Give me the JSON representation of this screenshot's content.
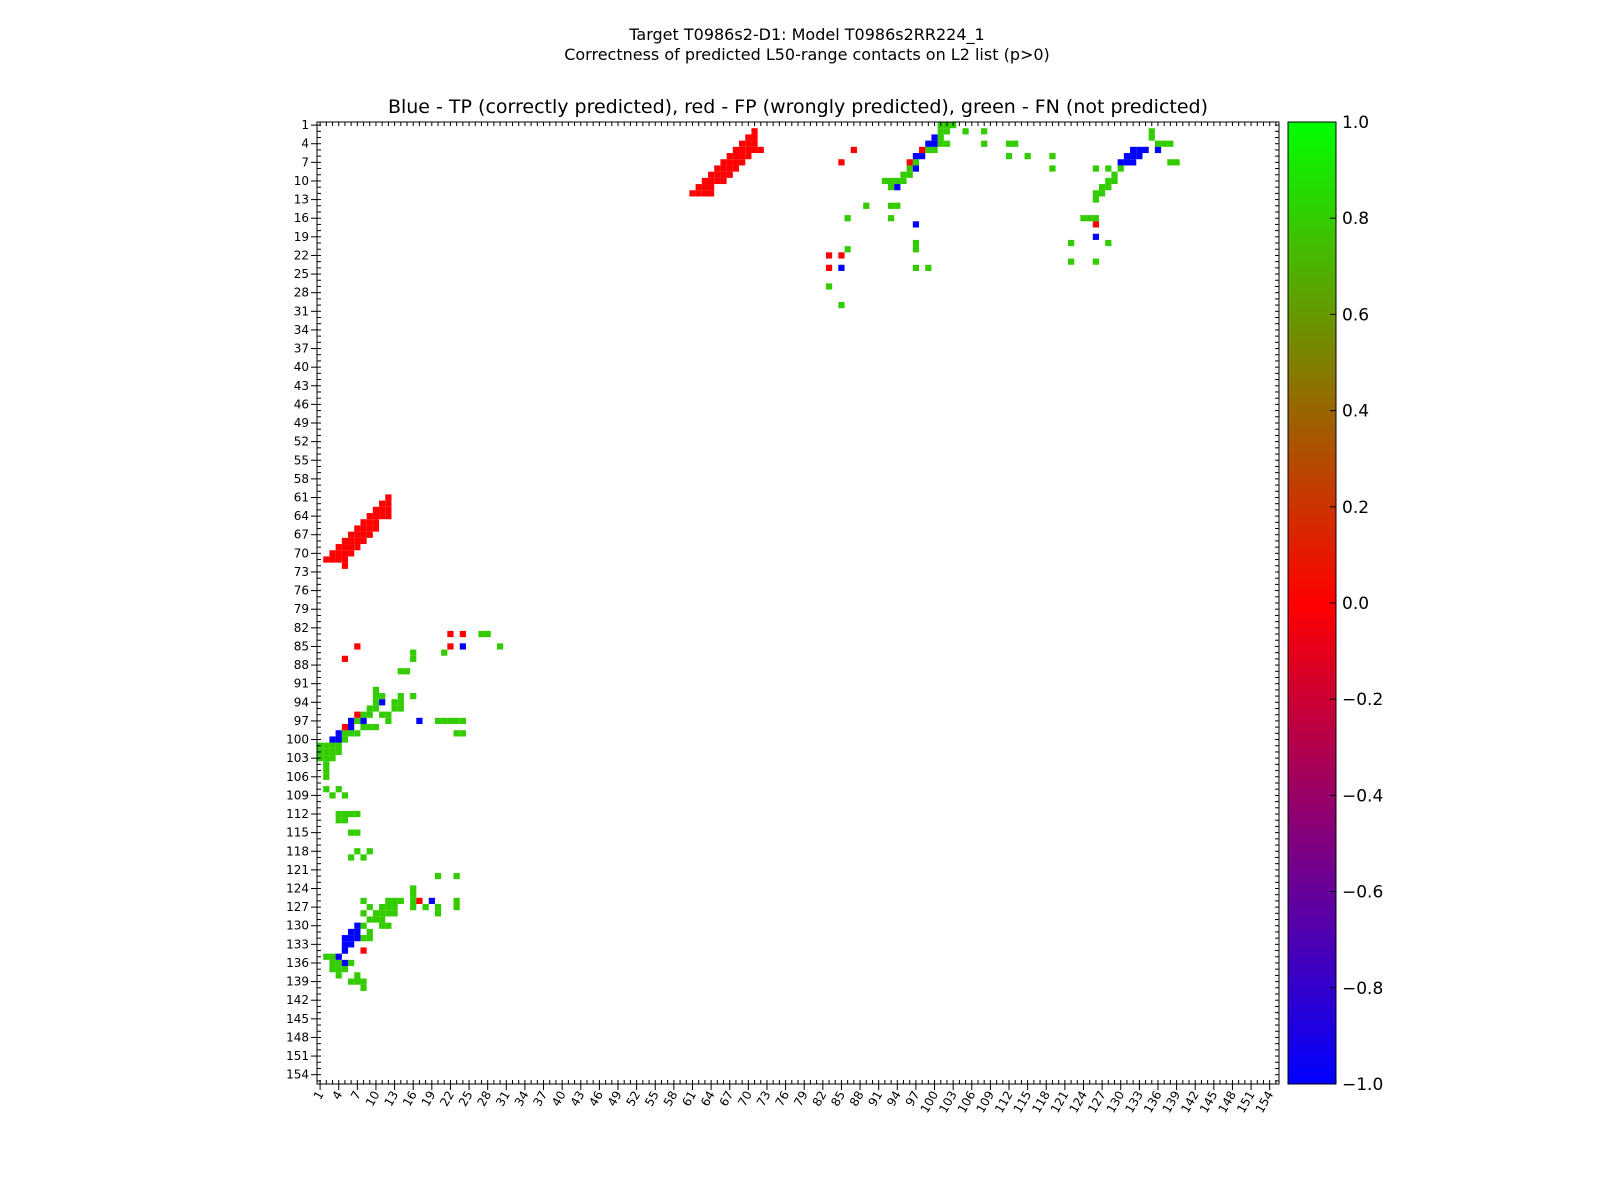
{
  "chart_data": {
    "type": "heatmap",
    "title_line1": "Target T0986s2-D1: Model T0986s2RR224_1",
    "title_line2": "Correctness of predicted L50-range contacts on L2 list (p>0)",
    "subtitle": "Blue - TP (correctly predicted), red - FP (wrongly predicted), green - FN (not predicted)",
    "x_range": [
      1,
      155
    ],
    "y_range": [
      1,
      155
    ],
    "x_ticks": [
      "1",
      "4",
      "7",
      "10",
      "13",
      "16",
      "19",
      "22",
      "25",
      "28",
      "31",
      "34",
      "37",
      "40",
      "43",
      "46",
      "49",
      "52",
      "55",
      "58",
      "61",
      "64",
      "67",
      "70",
      "73",
      "76",
      "79",
      "82",
      "85",
      "88",
      "91",
      "94",
      "97",
      "100",
      "103",
      "106",
      "109",
      "112",
      "115",
      "118",
      "121",
      "124",
      "127",
      "130",
      "133",
      "136",
      "139",
      "142",
      "145",
      "148",
      "151",
      "154"
    ],
    "y_ticks": [
      "1",
      "4",
      "7",
      "10",
      "13",
      "16",
      "19",
      "22",
      "25",
      "28",
      "31",
      "34",
      "37",
      "40",
      "43",
      "46",
      "49",
      "52",
      "55",
      "58",
      "61",
      "64",
      "67",
      "70",
      "73",
      "76",
      "79",
      "82",
      "85",
      "88",
      "91",
      "94",
      "97",
      "100",
      "103",
      "106",
      "109",
      "112",
      "115",
      "118",
      "121",
      "124",
      "127",
      "130",
      "133",
      "136",
      "139",
      "142",
      "145",
      "148",
      "151",
      "154"
    ],
    "colorbar": {
      "range": [
        -1.0,
        1.0
      ],
      "tick_labels": [
        "1.0",
        "0.8",
        "0.6",
        "0.4",
        "0.2",
        "0.0",
        "−0.2",
        "−0.4",
        "−0.6",
        "−0.8",
        "−1.0"
      ],
      "tick_values": [
        1.0,
        0.8,
        0.6,
        0.4,
        0.2,
        0.0,
        -0.2,
        -0.4,
        -0.6,
        -0.8,
        -1.0
      ],
      "colors": [
        "#0000ff",
        "#ff0000",
        "#00ff00"
      ]
    },
    "legend_colors": {
      "tp": "#0000ff",
      "fp": "#ff0000",
      "fn": "#33cc00"
    },
    "fp_cells": [
      [
        61,
        12
      ],
      [
        62,
        12
      ],
      [
        63,
        12
      ],
      [
        64,
        12
      ],
      [
        62,
        11
      ],
      [
        63,
        11
      ],
      [
        64,
        11
      ],
      [
        63,
        10
      ],
      [
        64,
        10
      ],
      [
        65,
        10
      ],
      [
        66,
        10
      ],
      [
        64,
        9
      ],
      [
        65,
        9
      ],
      [
        66,
        9
      ],
      [
        67,
        9
      ],
      [
        65,
        8
      ],
      [
        66,
        8
      ],
      [
        67,
        8
      ],
      [
        68,
        8
      ],
      [
        66,
        7
      ],
      [
        67,
        7
      ],
      [
        68,
        7
      ],
      [
        69,
        7
      ],
      [
        67,
        6
      ],
      [
        68,
        6
      ],
      [
        69,
        6
      ],
      [
        70,
        6
      ],
      [
        68,
        5
      ],
      [
        69,
        5
      ],
      [
        70,
        5
      ],
      [
        71,
        5
      ],
      [
        69,
        4
      ],
      [
        70,
        4
      ],
      [
        71,
        4
      ],
      [
        70,
        3
      ],
      [
        71,
        3
      ],
      [
        71,
        2
      ],
      [
        72,
        5
      ],
      [
        12,
        61
      ],
      [
        12,
        62
      ],
      [
        12,
        63
      ],
      [
        12,
        64
      ],
      [
        11,
        62
      ],
      [
        11,
        63
      ],
      [
        11,
        64
      ],
      [
        10,
        63
      ],
      [
        10,
        64
      ],
      [
        10,
        65
      ],
      [
        10,
        66
      ],
      [
        9,
        64
      ],
      [
        9,
        65
      ],
      [
        9,
        66
      ],
      [
        9,
        67
      ],
      [
        8,
        65
      ],
      [
        8,
        66
      ],
      [
        8,
        67
      ],
      [
        8,
        68
      ],
      [
        7,
        66
      ],
      [
        7,
        67
      ],
      [
        7,
        68
      ],
      [
        7,
        69
      ],
      [
        6,
        67
      ],
      [
        6,
        68
      ],
      [
        6,
        69
      ],
      [
        6,
        70
      ],
      [
        5,
        68
      ],
      [
        5,
        69
      ],
      [
        5,
        70
      ],
      [
        5,
        71
      ],
      [
        4,
        69
      ],
      [
        4,
        70
      ],
      [
        4,
        71
      ],
      [
        3,
        70
      ],
      [
        3,
        71
      ],
      [
        2,
        71
      ],
      [
        5,
        72
      ],
      [
        85,
        7
      ],
      [
        87,
        5
      ],
      [
        96,
        7
      ],
      [
        98,
        5
      ],
      [
        126,
        17
      ],
      [
        134,
        5
      ],
      [
        83,
        22
      ],
      [
        85,
        22
      ],
      [
        83,
        24
      ],
      [
        7,
        85
      ],
      [
        5,
        87
      ],
      [
        7,
        96
      ],
      [
        5,
        98
      ],
      [
        17,
        126
      ],
      [
        5,
        134
      ],
      [
        22,
        83
      ],
      [
        22,
        85
      ],
      [
        24,
        83
      ],
      [
        8,
        134
      ]
    ],
    "tp_cells": [
      [
        99,
        4
      ],
      [
        100,
        4
      ],
      [
        100,
        3
      ],
      [
        97,
        6
      ],
      [
        98,
        6
      ],
      [
        97,
        8
      ],
      [
        94,
        11
      ],
      [
        97,
        17
      ],
      [
        85,
        24
      ],
      [
        126,
        19
      ],
      [
        132,
        5
      ],
      [
        133,
        5
      ],
      [
        134,
        5
      ],
      [
        131,
        6
      ],
      [
        132,
        6
      ],
      [
        133,
        6
      ],
      [
        130,
        7
      ],
      [
        131,
        7
      ],
      [
        132,
        7
      ],
      [
        136,
        5
      ],
      [
        4,
        99
      ],
      [
        4,
        100
      ],
      [
        3,
        100
      ],
      [
        6,
        97
      ],
      [
        6,
        98
      ],
      [
        8,
        97
      ],
      [
        11,
        94
      ],
      [
        17,
        97
      ],
      [
        24,
        85
      ],
      [
        19,
        126
      ],
      [
        5,
        132
      ],
      [
        5,
        133
      ],
      [
        5,
        134
      ],
      [
        6,
        131
      ],
      [
        6,
        132
      ],
      [
        6,
        133
      ],
      [
        7,
        130
      ],
      [
        7,
        131
      ],
      [
        7,
        132
      ],
      [
        5,
        136
      ],
      [
        4,
        135
      ]
    ],
    "fn_cells": [
      [
        101,
        1
      ],
      [
        102,
        1
      ],
      [
        103,
        1
      ],
      [
        101,
        2
      ],
      [
        102,
        2
      ],
      [
        101,
        3
      ],
      [
        105,
        2
      ],
      [
        108,
        2
      ],
      [
        108,
        4
      ],
      [
        112,
        4
      ],
      [
        113,
        4
      ],
      [
        112,
        6
      ],
      [
        115,
        6
      ],
      [
        119,
        6
      ],
      [
        119,
        8
      ],
      [
        99,
        5
      ],
      [
        100,
        5
      ],
      [
        101,
        4
      ],
      [
        102,
        4
      ],
      [
        96,
        8
      ],
      [
        97,
        7
      ],
      [
        96,
        9
      ],
      [
        95,
        9
      ],
      [
        94,
        10
      ],
      [
        93,
        10
      ],
      [
        92,
        10
      ],
      [
        93,
        11
      ],
      [
        95,
        10
      ],
      [
        93,
        14
      ],
      [
        94,
        14
      ],
      [
        89,
        14
      ],
      [
        86,
        16
      ],
      [
        93,
        16
      ],
      [
        97,
        20
      ],
      [
        97,
        21
      ],
      [
        86,
        21
      ],
      [
        97,
        24
      ],
      [
        99,
        24
      ],
      [
        83,
        27
      ],
      [
        85,
        30
      ],
      [
        124,
        16
      ],
      [
        125,
        16
      ],
      [
        126,
        16
      ],
      [
        122,
        20
      ],
      [
        128,
        20
      ],
      [
        122,
        23
      ],
      [
        126,
        23
      ],
      [
        126,
        8
      ],
      [
        128,
        8
      ],
      [
        129,
        9
      ],
      [
        130,
        8
      ],
      [
        131,
        7
      ],
      [
        128,
        10
      ],
      [
        129,
        10
      ],
      [
        127,
        11
      ],
      [
        128,
        11
      ],
      [
        126,
        12
      ],
      [
        127,
        12
      ],
      [
        126,
        13
      ],
      [
        135,
        2
      ],
      [
        135,
        3
      ],
      [
        136,
        4
      ],
      [
        137,
        4
      ],
      [
        138,
        4
      ],
      [
        138,
        7
      ],
      [
        139,
        7
      ],
      [
        1,
        101
      ],
      [
        1,
        102
      ],
      [
        1,
        103
      ],
      [
        2,
        101
      ],
      [
        2,
        102
      ],
      [
        3,
        101
      ],
      [
        2,
        105
      ],
      [
        2,
        108
      ],
      [
        4,
        108
      ],
      [
        4,
        112
      ],
      [
        4,
        113
      ],
      [
        6,
        112
      ],
      [
        6,
        115
      ],
      [
        6,
        119
      ],
      [
        8,
        119
      ],
      [
        5,
        99
      ],
      [
        5,
        100
      ],
      [
        4,
        101
      ],
      [
        4,
        102
      ],
      [
        8,
        96
      ],
      [
        7,
        97
      ],
      [
        9,
        96
      ],
      [
        9,
        95
      ],
      [
        10,
        94
      ],
      [
        10,
        93
      ],
      [
        10,
        92
      ],
      [
        11,
        93
      ],
      [
        10,
        95
      ],
      [
        14,
        93
      ],
      [
        14,
        94
      ],
      [
        14,
        89
      ],
      [
        16,
        86
      ],
      [
        16,
        93
      ],
      [
        20,
        97
      ],
      [
        21,
        97
      ],
      [
        21,
        86
      ],
      [
        24,
        97
      ],
      [
        24,
        99
      ],
      [
        27,
        83
      ],
      [
        30,
        85
      ],
      [
        16,
        124
      ],
      [
        16,
        125
      ],
      [
        16,
        126
      ],
      [
        20,
        122
      ],
      [
        20,
        128
      ],
      [
        23,
        122
      ],
      [
        23,
        126
      ],
      [
        8,
        126
      ],
      [
        8,
        128
      ],
      [
        9,
        129
      ],
      [
        8,
        130
      ],
      [
        7,
        131
      ],
      [
        10,
        128
      ],
      [
        10,
        129
      ],
      [
        11,
        127
      ],
      [
        11,
        128
      ],
      [
        12,
        126
      ],
      [
        12,
        127
      ],
      [
        13,
        126
      ],
      [
        2,
        135
      ],
      [
        3,
        135
      ],
      [
        4,
        136
      ],
      [
        4,
        137
      ],
      [
        4,
        138
      ],
      [
        7,
        138
      ],
      [
        7,
        139
      ],
      [
        2,
        102
      ],
      [
        3,
        102
      ],
      [
        2,
        103
      ],
      [
        3,
        103
      ],
      [
        2,
        104
      ],
      [
        4,
        101
      ],
      [
        5,
        100
      ],
      [
        6,
        99
      ],
      [
        2,
        106
      ],
      [
        3,
        109
      ],
      [
        5,
        109
      ],
      [
        5,
        112
      ],
      [
        5,
        113
      ],
      [
        7,
        112
      ],
      [
        7,
        115
      ],
      [
        7,
        118
      ],
      [
        9,
        118
      ],
      [
        20,
        122
      ],
      [
        23,
        122
      ],
      [
        9,
        127
      ],
      [
        10,
        128
      ],
      [
        11,
        129
      ],
      [
        12,
        127
      ],
      [
        12,
        128
      ],
      [
        12,
        130
      ],
      [
        13,
        126
      ],
      [
        13,
        127
      ],
      [
        13,
        128
      ],
      [
        14,
        126
      ],
      [
        11,
        130
      ],
      [
        16,
        126
      ],
      [
        16,
        127
      ],
      [
        18,
        127
      ],
      [
        20,
        127
      ],
      [
        20,
        128
      ],
      [
        23,
        127
      ],
      [
        9,
        131
      ],
      [
        8,
        132
      ],
      [
        9,
        132
      ],
      [
        3,
        136
      ],
      [
        3,
        137
      ],
      [
        4,
        137
      ],
      [
        5,
        137
      ],
      [
        6,
        136
      ],
      [
        6,
        139
      ],
      [
        7,
        139
      ],
      [
        8,
        139
      ],
      [
        8,
        140
      ],
      [
        9,
        98
      ],
      [
        10,
        98
      ],
      [
        11,
        96
      ],
      [
        12,
        96
      ],
      [
        12,
        97
      ],
      [
        13,
        95
      ],
      [
        13,
        94
      ],
      [
        14,
        95
      ],
      [
        16,
        93
      ],
      [
        20,
        97
      ],
      [
        21,
        97
      ],
      [
        23,
        97
      ],
      [
        23,
        99
      ],
      [
        22,
        97
      ],
      [
        15,
        89
      ],
      [
        16,
        87
      ],
      [
        28,
        83
      ],
      [
        30,
        85
      ],
      [
        9,
        96
      ],
      [
        8,
        97
      ],
      [
        8,
        98
      ],
      [
        7,
        99
      ]
    ]
  }
}
